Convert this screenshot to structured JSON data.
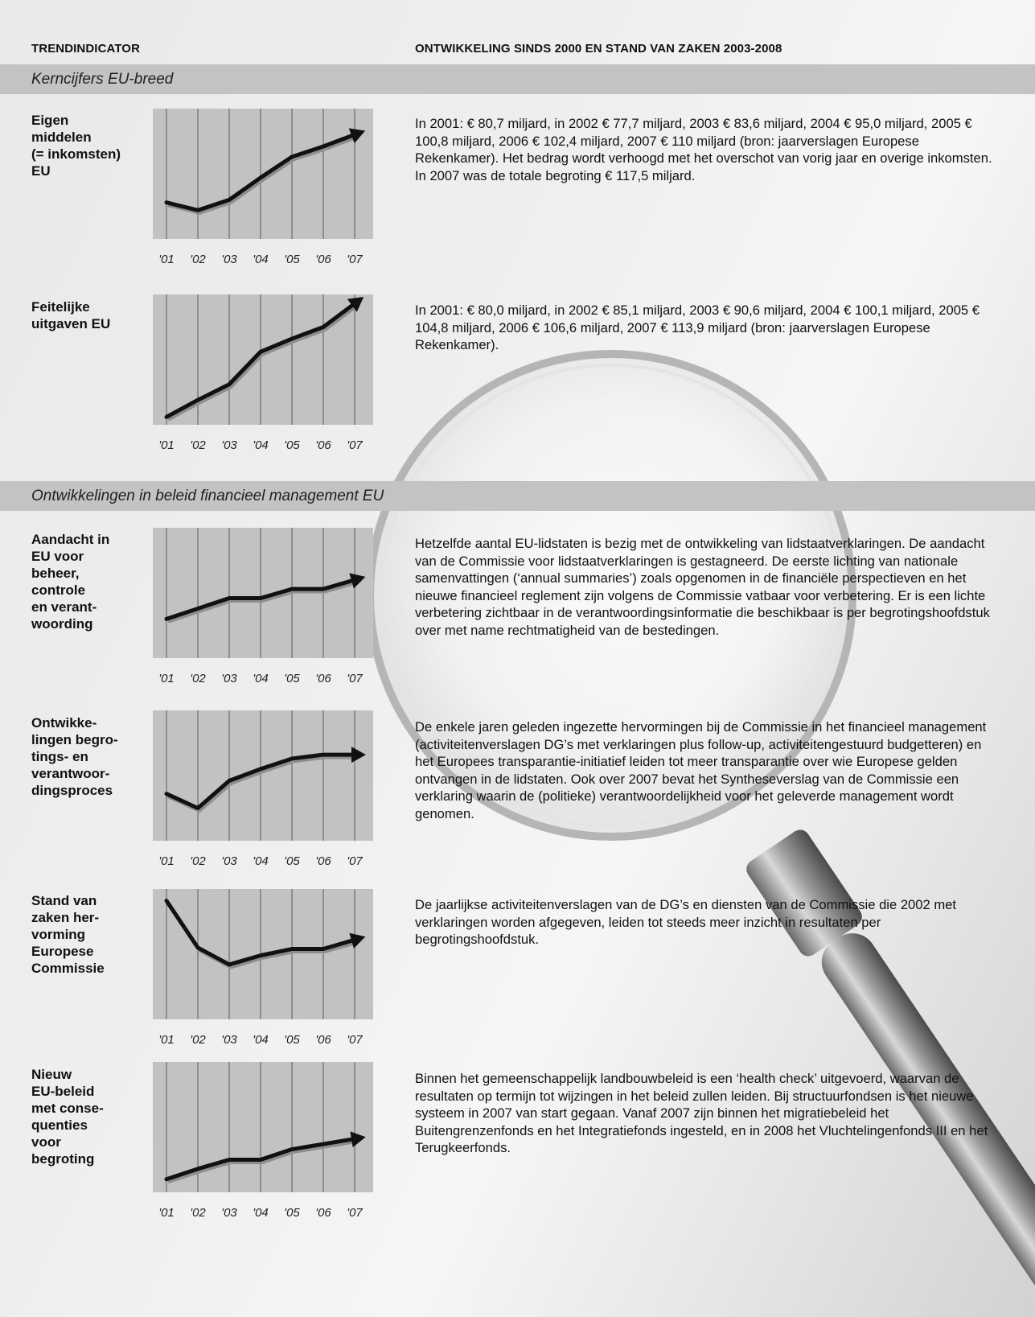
{
  "header": {
    "col1": "TRENDINDICATOR",
    "col2": "ONTWIKKELING SINDS 2000 EN STAND VAN ZAKEN 2003-2008"
  },
  "sections": [
    {
      "title": "Kerncijfers EU-breed"
    },
    {
      "title": "Ontwikkelingen in beleid financieel management EU"
    }
  ],
  "indicators": [
    {
      "label": "Eigen middelen (= inkomsten) EU",
      "label_lines": [
        "Eigen",
        "middelen",
        "(= inkomsten)",
        "EU"
      ],
      "description": "In 2001: € 80,7 miljard, in 2002 € 77,7 miljard, 2003 € 83,6 miljard, 2004 € 95,0 miljard, 2005 € 100,8 miljard, 2006 € 102,4 miljard, 2007 € 110 miljard (bron: jaarverslagen Europese Rekenkamer). Het bedrag wordt verhoogd met het overschot van vorig jaar en overige inkomsten. In 2007 was de totale begroting € 117,5 miljard."
    },
    {
      "label": "Feitelijke uitgaven EU",
      "label_lines": [
        "Feitelijke",
        "uitgaven EU"
      ],
      "description": "In 2001: € 80,0 miljard, in 2002 € 85,1 miljard, 2003 € 90,6 miljard, 2004 € 100,1 miljard, 2005 € 104,8 miljard, 2006 € 106,6 miljard, 2007 € 113,9 miljard (bron: jaarverslagen Europese Rekenkamer)."
    },
    {
      "label": "Aandacht in EU voor beheer, controle en verantwoording",
      "label_lines": [
        "Aandacht in",
        "EU voor",
        "beheer,",
        "controle",
        "en verant-",
        "woording"
      ],
      "description": "Hetzelfde aantal EU-lidstaten is bezig met de ontwikkeling van lidstaatverklaringen. De aandacht van de Commissie voor lidstaatverklaringen is gestagneerd. De eerste lichting van nationale samenvattingen (‘annual summaries’) zoals opgenomen in de financiële perspectieven en het nieuwe financieel reglement zijn volgens de Commissie vatbaar voor verbetering. Er is een lichte verbetering zichtbaar in de verantwoordingsinformatie die beschikbaar is per begrotingshoofdstuk over met name rechtmatigheid van de bestedingen."
    },
    {
      "label": "Ontwikkelingen begrotings- en verantwoordingsproces",
      "label_lines": [
        "Ontwikke-",
        "lingen begro-",
        "tings- en",
        "verantwoor-",
        "dingsproces"
      ],
      "description": "De enkele jaren geleden ingezette hervormingen bij de Commissie in het financieel management (activiteitenverslagen DG’s met verklaringen plus follow-up, activiteitengestuurd budgetteren) en het Europees transparantie-initiatief leiden tot meer transparantie over wie Europese gelden ontvangen in de lidstaten. Ook over 2007 bevat het Syntheseverslag van de Commissie een verklaring waarin de (politieke) verantwoordelijkheid voor het geleverde management wordt genomen."
    },
    {
      "label": "Stand van zaken hervorming Europese Commissie",
      "label_lines": [
        "Stand van",
        "zaken her-",
        "vorming",
        "Europese",
        "Commissie"
      ],
      "description": "De jaarlijkse activiteitenverslagen van de DG’s en diensten van de Commissie die 2002 met verklaringen worden afgegeven, leiden tot steeds meer inzicht in resultaten per begrotingshoofdstuk."
    },
    {
      "label": "Nieuw EU-beleid met consequenties voor begroting",
      "label_lines": [
        "Nieuw",
        "EU-beleid",
        "met conse-",
        "quenties",
        "voor",
        "begroting"
      ],
      "description": "Binnen het gemeenschappelijk landbouwbeleid is een ‘health check’ uitgevoerd, waarvan de resultaten op termijn tot wijzingen in het beleid zullen leiden. Bij structuurfondsen is het nieuwe systeem in 2007 van start gegaan. Vanaf 2007 zijn binnen het migratiebeleid het Buitengrenzenfonds en het Integratiefonds ingesteld, en in 2008 het Vluchtelingenfonds III en het Terugkeerfonds."
    }
  ],
  "chart_data": [
    {
      "type": "line",
      "categories": [
        "'01",
        "'02",
        "'03",
        "'04",
        "'05",
        "'06",
        "'07"
      ],
      "values": [
        0.28,
        0.22,
        0.3,
        0.47,
        0.63,
        0.71,
        0.8
      ],
      "ylim": [
        0,
        1
      ],
      "arrow_end": true,
      "grid": true
    },
    {
      "type": "line",
      "categories": [
        "'01",
        "'02",
        "'03",
        "'04",
        "'05",
        "'06",
        "'07"
      ],
      "values": [
        0.06,
        0.19,
        0.31,
        0.56,
        0.66,
        0.75,
        0.93
      ],
      "ylim": [
        0,
        1
      ],
      "arrow_end": true,
      "grid": true
    },
    {
      "type": "line",
      "categories": [
        "'01",
        "'02",
        "'03",
        "'04",
        "'05",
        "'06",
        "'07"
      ],
      "values": [
        0.3,
        0.38,
        0.46,
        0.46,
        0.53,
        0.53,
        0.6
      ],
      "ylim": [
        0,
        1
      ],
      "arrow_end": true,
      "grid": true
    },
    {
      "type": "line",
      "categories": [
        "'01",
        "'02",
        "'03",
        "'04",
        "'05",
        "'06",
        "'07"
      ],
      "values": [
        0.36,
        0.25,
        0.46,
        0.55,
        0.63,
        0.66,
        0.66
      ],
      "ylim": [
        0,
        1
      ],
      "arrow_end": true,
      "grid": true
    },
    {
      "type": "line",
      "categories": [
        "'01",
        "'02",
        "'03",
        "'04",
        "'05",
        "'06",
        "'07"
      ],
      "values": [
        0.91,
        0.55,
        0.42,
        0.49,
        0.54,
        0.54,
        0.61
      ],
      "ylim": [
        0,
        1
      ],
      "arrow_end": true,
      "grid": true
    },
    {
      "type": "line",
      "categories": [
        "'01",
        "'02",
        "'03",
        "'04",
        "'05",
        "'06",
        "'07"
      ],
      "values": [
        0.1,
        0.18,
        0.25,
        0.25,
        0.33,
        0.37,
        0.41
      ],
      "ylim": [
        0,
        1
      ],
      "arrow_end": true,
      "grid": true
    }
  ],
  "colors": {
    "band": "#c3c3c3",
    "plot_bg": "#c2c2c2",
    "line": "#111111"
  }
}
